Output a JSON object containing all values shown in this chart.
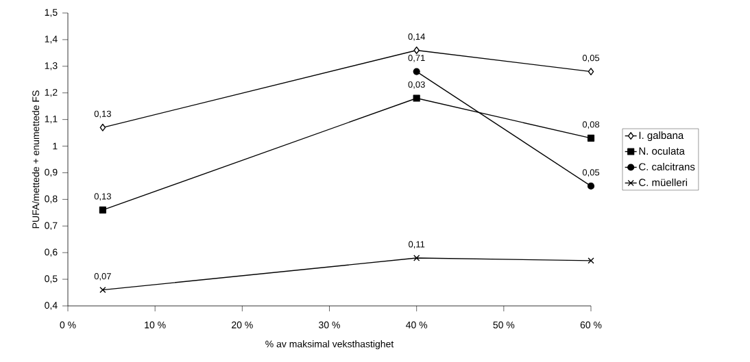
{
  "chart_data": {
    "type": "line",
    "xlabel": "% av maksimal veksthastighet",
    "ylabel": "PUFA/mettede + enumettede FS",
    "x": [
      4,
      40,
      60
    ],
    "series": [
      {
        "name": "I. galbana",
        "color": "#000000",
        "marker": "diamond",
        "values": [
          1.07,
          1.36,
          1.28
        ]
      },
      {
        "name": "N. oculata",
        "color": "#000000",
        "marker": "square",
        "values": [
          0.76,
          1.18,
          1.03
        ]
      },
      {
        "name": "C. calcitrans",
        "color": "#000000",
        "marker": "circle",
        "values": [
          null,
          1.28,
          0.85
        ]
      },
      {
        "name": "C. müelleri",
        "color": "#000000",
        "marker": "cross",
        "values": [
          0.46,
          0.58,
          0.57
        ]
      }
    ],
    "xlim": [
      0,
      60
    ],
    "xticks": [
      {
        "value": 0,
        "label": "0 %"
      },
      {
        "value": 10,
        "label": "10 %"
      },
      {
        "value": 20,
        "label": "20 %"
      },
      {
        "value": 30,
        "label": "30 %"
      },
      {
        "value": 40,
        "label": "40 %"
      },
      {
        "value": 50,
        "label": "50 %"
      },
      {
        "value": 60,
        "label": "60 %"
      }
    ],
    "ylim": [
      0.4,
      1.5
    ],
    "yticks": [
      {
        "value": 0.4,
        "label": "0,4"
      },
      {
        "value": 0.5,
        "label": "0,5"
      },
      {
        "value": 0.6,
        "label": "0,6"
      },
      {
        "value": 0.7,
        "label": "0,7"
      },
      {
        "value": 0.8,
        "label": "0,8"
      },
      {
        "value": 0.9,
        "label": "0,9"
      },
      1,
      {
        "value": 1.1,
        "label": "1,1"
      },
      {
        "value": 1.2,
        "label": "1,2"
      },
      {
        "value": 1.3,
        "label": "1,3"
      },
      {
        "value": 1.4,
        "label": "1,4"
      },
      {
        "value": 1.5,
        "label": "1,5"
      }
    ],
    "grid": false,
    "legend": "right",
    "line_style": "solid",
    "annotations": [
      {
        "text": "0,13",
        "x": 4,
        "y": 1.07
      },
      {
        "text": "0,14",
        "x": 40,
        "y": 1.36
      },
      {
        "text": "0,05",
        "x": 60,
        "y": 1.28
      },
      {
        "text": "0,13",
        "x": 4,
        "y": 0.76
      },
      {
        "text": "0,03",
        "x": 40,
        "y": 1.18
      },
      {
        "text": "0,08",
        "x": 60,
        "y": 1.03
      },
      {
        "text": "0,71",
        "x": 40,
        "y": 1.28
      },
      {
        "text": "0,05",
        "x": 60,
        "y": 0.85
      },
      {
        "text": "0,07",
        "x": 4,
        "y": 0.46
      },
      {
        "text": "0,11",
        "x": 40,
        "y": 0.58
      }
    ]
  }
}
